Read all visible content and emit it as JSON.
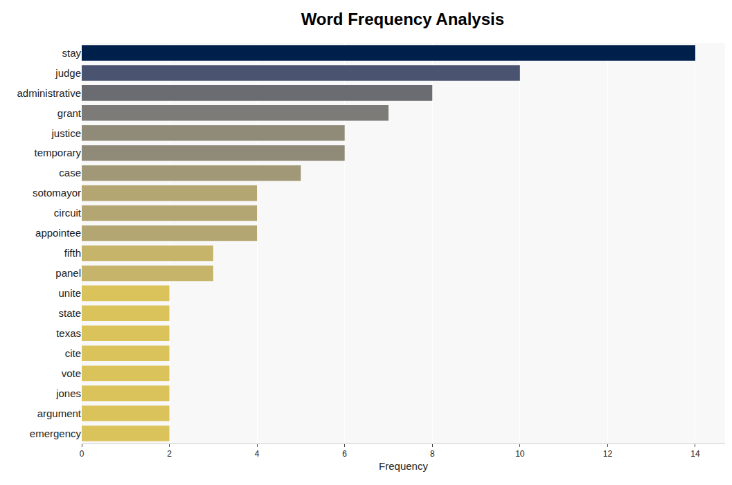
{
  "chart_data": {
    "type": "bar",
    "orientation": "horizontal",
    "title": "Word Frequency Analysis",
    "x_label": "Frequency",
    "categories": [
      "stay",
      "judge",
      "administrative",
      "grant",
      "justice",
      "temporary",
      "case",
      "sotomayor",
      "circuit",
      "appointee",
      "fifth",
      "panel",
      "unite",
      "state",
      "texas",
      "cite",
      "vote",
      "jones",
      "argument",
      "emergency"
    ],
    "values": [
      14,
      10,
      8,
      7,
      6,
      6,
      5,
      4,
      4,
      4,
      3,
      3,
      2,
      2,
      2,
      2,
      2,
      2,
      2,
      2
    ],
    "colors": [
      "#00204c",
      "#4a5470",
      "#6b6c72",
      "#7c7b78",
      "#908a78",
      "#908a78",
      "#a09876",
      "#b3a672",
      "#b3a672",
      "#b3a672",
      "#c6b46a",
      "#c6b46a",
      "#dbc35c",
      "#dbc35c",
      "#dbc35c",
      "#dbc35c",
      "#dbc35c",
      "#dbc35c",
      "#dbc35c",
      "#dbc35c"
    ],
    "xlim": [
      0,
      14.68
    ],
    "xticks": [
      0,
      2,
      4,
      6,
      8,
      10,
      12,
      14
    ],
    "grid": true
  }
}
